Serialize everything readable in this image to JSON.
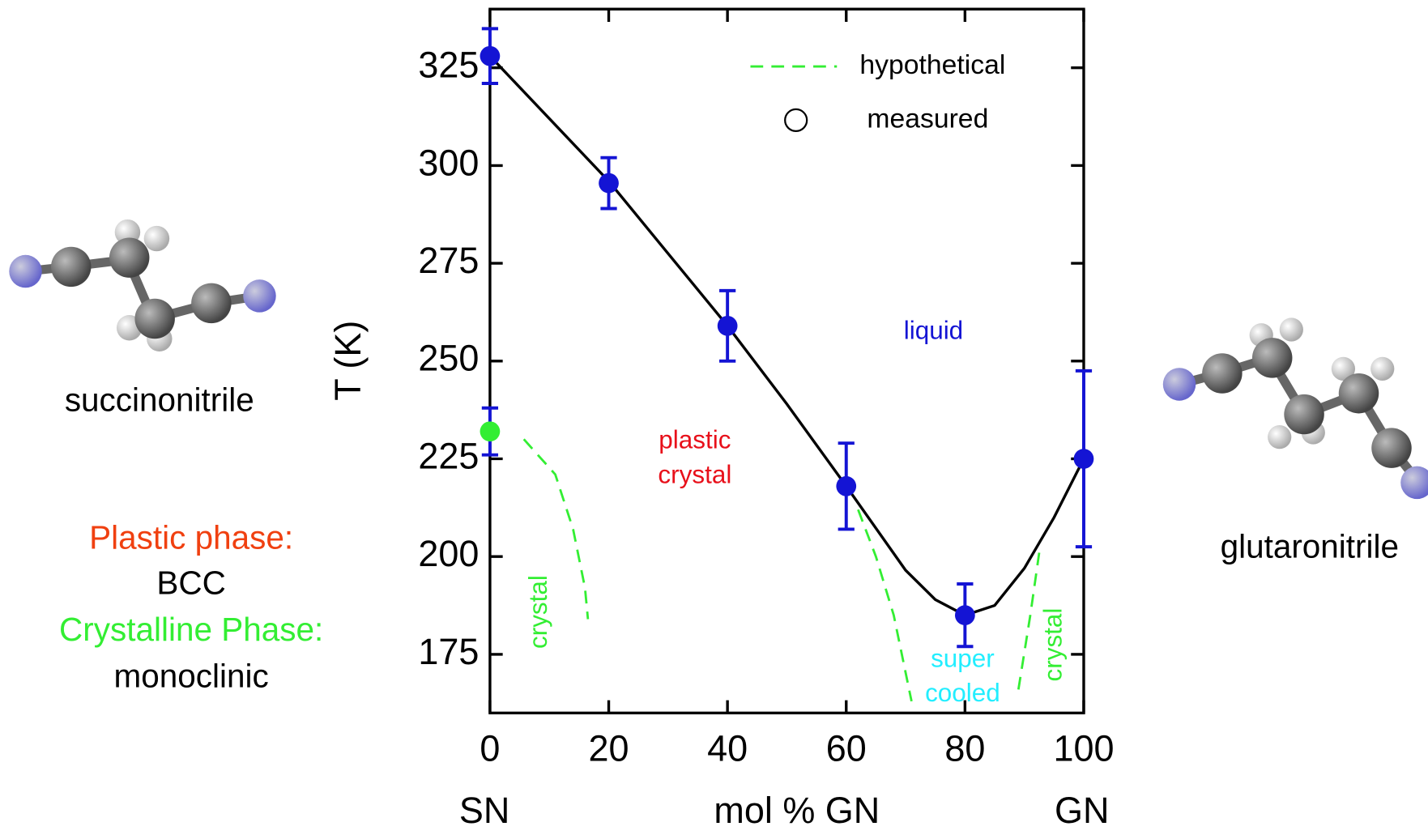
{
  "chart_data": {
    "type": "line",
    "xlabel_left": "SN",
    "xlabel": "mol % GN",
    "xlabel_right": "GN",
    "ylabel": "T (K)",
    "xlim": [
      0,
      100
    ],
    "xticks": [
      0,
      20,
      40,
      60,
      80,
      100
    ],
    "ylim": [
      160,
      340
    ],
    "yticks": [
      175,
      200,
      225,
      250,
      275,
      300,
      325
    ],
    "legend": "upper center",
    "series": [
      {
        "name": "measured",
        "style": "markers",
        "color": "#1414d4",
        "x": [
          0,
          20,
          40,
          60,
          80,
          100
        ],
        "values": [
          328,
          295.5,
          259,
          218,
          185,
          225
        ],
        "errors": [
          7,
          6.5,
          9,
          11,
          8,
          22.5
        ]
      },
      {
        "style": "markers",
        "color": "#33ee33",
        "error_color": "#1414d4",
        "x": [
          0
        ],
        "values": [
          232
        ],
        "errors": [
          6
        ]
      },
      {
        "style": "solid",
        "color": "#000000",
        "x": [
          0,
          10,
          20,
          30,
          40,
          50,
          60,
          70,
          75,
          80,
          85,
          90,
          95,
          100
        ],
        "values": [
          328,
          312,
          296,
          277.5,
          259,
          239,
          218,
          196.5,
          189,
          185,
          187.5,
          197,
          210,
          225
        ]
      },
      {
        "name": "hypothetical",
        "style": "dashed",
        "color": "#33ee33",
        "x": [
          5.7,
          11,
          14,
          16,
          16.5,
          null,
          62,
          65,
          68,
          71,
          null,
          89,
          91,
          92.5
        ],
        "values": [
          230,
          221,
          207,
          192,
          184,
          null,
          212,
          200,
          185,
          163,
          null,
          166,
          185,
          201
        ]
      }
    ],
    "annotations": [
      {
        "lines": [
          "liquid"
        ],
        "color": "#1414d4"
      },
      {
        "lines": [
          "plastic",
          "crystal"
        ],
        "color": "#e8101a"
      },
      {
        "lines": [
          "crystal"
        ],
        "color": "#33ee33"
      },
      {
        "lines": [
          "super",
          "cooled"
        ],
        "color": "#22eeff"
      },
      {
        "lines": [
          "crystal"
        ],
        "color": "#33ee33"
      }
    ]
  },
  "side": {
    "left_molecule": "succinonitrile",
    "plastic_phase": "Plastic phase:",
    "plastic_structure": "BCC",
    "crystal_phase": "Crystalline Phase:",
    "crystal_structure": "monoclinic",
    "right_molecule": "glutaronitrile"
  }
}
